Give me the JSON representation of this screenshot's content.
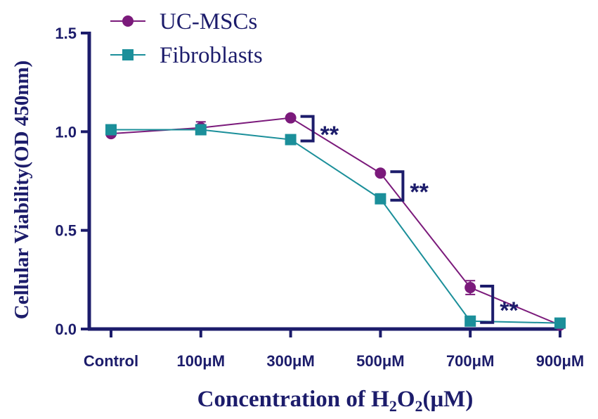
{
  "chart_data": {
    "type": "line",
    "x_categories": [
      "Control",
      "100μM",
      "300μM",
      "500μM",
      "700μM",
      "900μM"
    ],
    "ylabel": "Cellular Viability(OD 450nm)",
    "xlabel": {
      "before": "Concentration of H",
      "sub1": "2",
      "middle": "O",
      "sub2": "2",
      "after": "(μM)"
    },
    "ylim": [
      0,
      1.5
    ],
    "y_ticks": [
      "0.0",
      "0.5",
      "1.0",
      "1.5"
    ],
    "y_tick_values": [
      0,
      0.5,
      1.0,
      1.5
    ],
    "grid": false,
    "legend_position": "top-left",
    "series": [
      {
        "name": "UC-MSCs",
        "marker": "circle",
        "color": "#7b1a7b",
        "values": [
          0.99,
          1.02,
          1.07,
          0.79,
          0.21,
          0.02
        ],
        "errors": [
          0.01,
          0.03,
          0.01,
          0.01,
          0.035,
          0.01
        ]
      },
      {
        "name": "Fibroblasts",
        "marker": "square",
        "color": "#1b8f9a",
        "values": [
          1.01,
          1.01,
          0.96,
          0.66,
          0.04,
          0.03
        ],
        "errors": [
          0.01,
          0.02,
          0.01,
          0.01,
          0.01,
          0.01
        ]
      }
    ],
    "significance": [
      {
        "between": "300μM",
        "label": "**"
      },
      {
        "between": "500μM",
        "label": "**"
      },
      {
        "between": "700μM",
        "label": "**"
      }
    ],
    "axis_color": "#1c1c6b"
  }
}
